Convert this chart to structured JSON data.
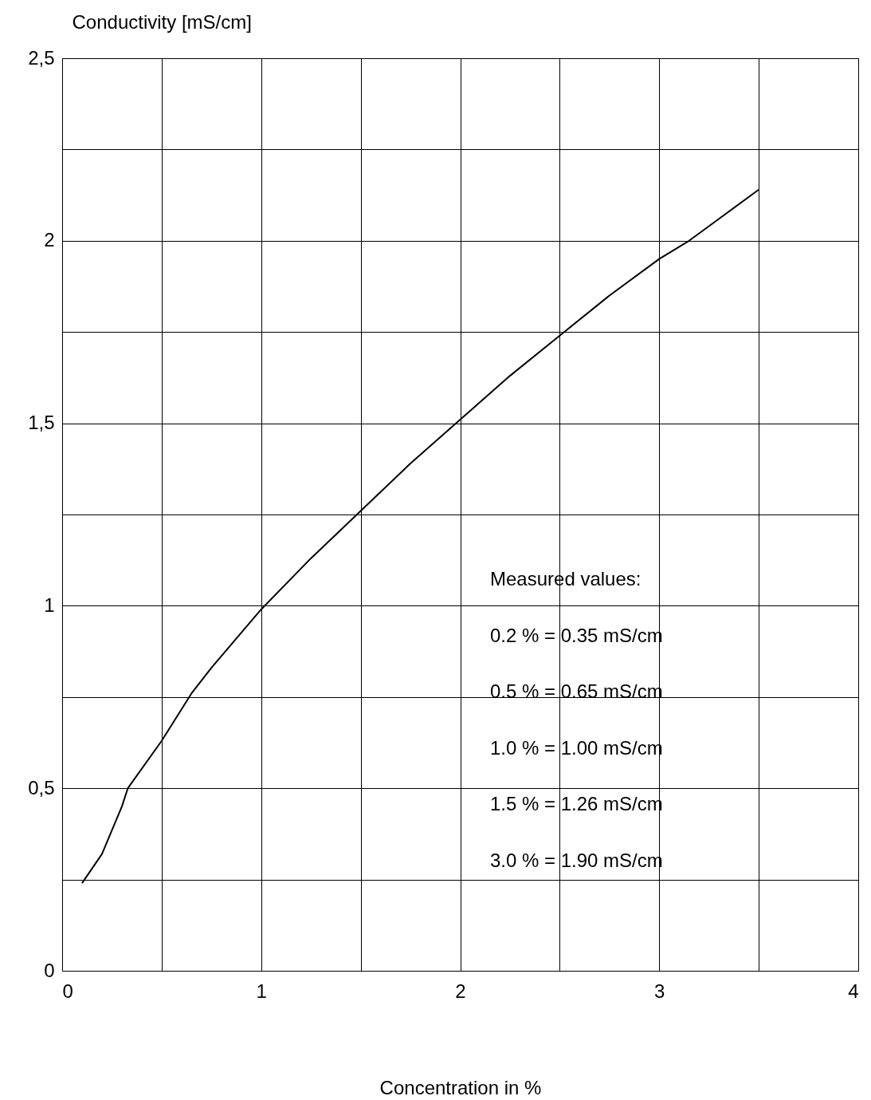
{
  "chart_data": {
    "type": "line",
    "xlabel": "Concentration in %",
    "ylabel": "Conductivity [mS/cm]",
    "xlim": [
      0,
      4
    ],
    "ylim": [
      0,
      2.5
    ],
    "xticks": [
      0,
      {
        "value": 0.5,
        "label": null
      },
      1,
      {
        "value": 1.5,
        "label": null
      },
      2,
      {
        "value": 2.5,
        "label": null
      },
      3,
      {
        "value": 3.5,
        "label": null
      },
      4
    ],
    "yticks": [
      0,
      {
        "value": 0.25,
        "label": null
      },
      {
        "value": 0.5,
        "label": "0,5"
      },
      {
        "value": 0.75,
        "label": null
      },
      1,
      {
        "value": 1.25,
        "label": null
      },
      {
        "value": 1.5,
        "label": "1,5"
      },
      {
        "value": 1.75,
        "label": null
      },
      2,
      {
        "value": 2.25,
        "label": null
      },
      {
        "value": 2.5,
        "label": "2,5"
      }
    ],
    "grid": true,
    "marker": "none",
    "line_style": "solid",
    "series": [
      {
        "color": "#000000",
        "x": [
          0.1,
          0.15,
          0.2,
          0.3,
          0.33,
          0.5,
          0.65,
          0.75,
          1,
          1.25,
          1.5,
          1.75,
          2,
          2.25,
          2.5,
          2.75,
          3,
          3.15,
          3.25,
          3.5
        ],
        "values": [
          0.24,
          0.28,
          0.32,
          0.45,
          0.5,
          0.63,
          0.76,
          0.83,
          0.99,
          1.13,
          1.26,
          1.39,
          1.51,
          1.63,
          1.74,
          1.85,
          1.95,
          2.0,
          2.04,
          2.14
        ]
      }
    ],
    "annotations": [
      "Measured values:",
      "0.2 % = 0.35 mS/cm",
      "0.5 % = 0.65 mS/cm",
      "1.0 % = 1.00 mS/cm",
      "1.5 % = 1.26 mS/cm",
      "3.0 % = 1.90 mS/cm"
    ]
  }
}
